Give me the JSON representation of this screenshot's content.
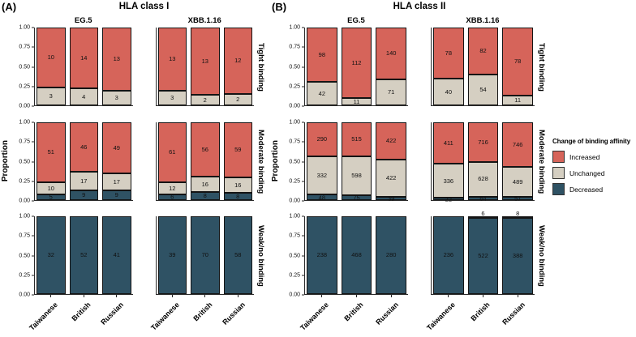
{
  "legend": {
    "title": "Change of binding affinity",
    "items": [
      {
        "label": "Increased",
        "color": "#D6645A"
      },
      {
        "label": "Unchanged",
        "color": "#D5CFC2"
      },
      {
        "label": "Decreased",
        "color": "#2F5264"
      }
    ]
  },
  "axes": {
    "y_label": "Proportion",
    "y_ticks": [
      "1.00",
      "0.75",
      "0.50",
      "0.25",
      "0.00"
    ],
    "x_categories": [
      "Taiwanese",
      "British",
      "Russian"
    ]
  },
  "chart_data": {
    "type": "bar",
    "subtype": "stacked-proportion-faceted",
    "stack_order_top_to_bottom": [
      "Increased",
      "Unchanged",
      "Decreased"
    ],
    "colors": {
      "Increased": "#D6645A",
      "Unchanged": "#D5CFC2",
      "Decreased": "#2F5264"
    },
    "categories": [
      "Taiwanese",
      "British",
      "Russian"
    ],
    "y_axis": {
      "label": "Proportion",
      "range": [
        0,
        1
      ],
      "ticks": [
        1.0,
        0.75,
        0.5,
        0.25,
        0.0
      ]
    },
    "panels": [
      {
        "letter": "(A)",
        "title": "HLA class I",
        "facet_columns": [
          "EG.5",
          "XBB.1.16"
        ],
        "facet_rows": [
          "Tight binding",
          "Moderate binding",
          "Weak/no binding"
        ],
        "counts": {
          "Tight binding": {
            "EG.5": [
              {
                "Increased": 10,
                "Unchanged": 3
              },
              {
                "Increased": 14,
                "Unchanged": 4
              },
              {
                "Increased": 13,
                "Unchanged": 3
              }
            ],
            "XBB.1.16": [
              {
                "Increased": 13,
                "Unchanged": 3
              },
              {
                "Increased": 13,
                "Unchanged": 2
              },
              {
                "Increased": 12,
                "Unchanged": 2
              }
            ]
          },
          "Moderate binding": {
            "EG.5": [
              {
                "Increased": 51,
                "Unchanged": 10,
                "Decreased": 5
              },
              {
                "Increased": 46,
                "Unchanged": 17,
                "Decreased": 9
              },
              {
                "Increased": 49,
                "Unchanged": 17,
                "Decreased": 9
              }
            ],
            "XBB.1.16": [
              {
                "Increased": 61,
                "Unchanged": 12,
                "Decreased": 6
              },
              {
                "Increased": 56,
                "Unchanged": 16,
                "Decreased": 8
              },
              {
                "Increased": 59,
                "Unchanged": 16,
                "Decreased": 8
              }
            ]
          },
          "Weak/no binding": {
            "EG.5": [
              {
                "Decreased": 32
              },
              {
                "Decreased": 52
              },
              {
                "Decreased": 41
              }
            ],
            "XBB.1.16": [
              {
                "Decreased": 39
              },
              {
                "Decreased": 70
              },
              {
                "Decreased": 58
              }
            ]
          }
        }
      },
      {
        "letter": "(B)",
        "title": "HLA class II",
        "facet_columns": [
          "EG.5",
          "XBB.1.16"
        ],
        "facet_rows": [
          "Tight binding",
          "Moderate binding",
          "Weak/no binding"
        ],
        "counts": {
          "Tight binding": {
            "EG.5": [
              {
                "Increased": 98,
                "Unchanged": 42
              },
              {
                "Increased": 112,
                "Unchanged": 11
              },
              {
                "Increased": 140,
                "Unchanged": 71
              }
            ],
            "XBB.1.16": [
              {
                "Increased": 78,
                "Unchanged": 40
              },
              {
                "Increased": 82,
                "Unchanged": 54
              },
              {
                "Increased": 78,
                "Unchanged": 11
              }
            ]
          },
          "Moderate binding": {
            "EG.5": [
              {
                "Increased": 290,
                "Unchanged": 332,
                "Decreased": 48
              },
              {
                "Increased": 515,
                "Unchanged": 598,
                "Decreased": 75
              },
              {
                "Increased": 422,
                "Unchanged": 422,
                "Decreased": 39
              }
            ],
            "XBB.1.16": [
              {
                "Increased": 411,
                "Unchanged": 336,
                "Decreased": 22
              },
              {
                "Increased": 716,
                "Unchanged": 628,
                "Decreased": 64
              },
              {
                "Increased": 746,
                "Unchanged": 489,
                "Decreased": 57
              }
            ]
          },
          "Weak/no binding": {
            "EG.5": [
              {
                "Decreased": 238
              },
              {
                "Decreased": 468
              },
              {
                "Decreased": 280
              }
            ],
            "XBB.1.16": [
              {
                "Decreased": 236
              },
              {
                "Increased": 6,
                "Decreased": 522
              },
              {
                "Increased": 8,
                "Decreased": 388
              }
            ]
          }
        }
      }
    ]
  }
}
